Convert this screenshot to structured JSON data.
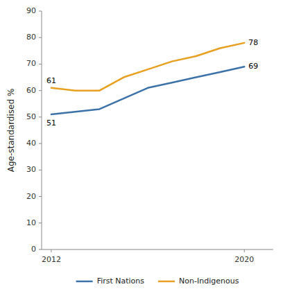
{
  "chart_data": {
    "type": "line",
    "x": [
      2012,
      2013,
      2014,
      2015,
      2016,
      2017,
      2018,
      2019,
      2020
    ],
    "series": [
      {
        "name": "First Nations",
        "color": "#3C72A8",
        "values": [
          51,
          52,
          53,
          57,
          61,
          63,
          65,
          67,
          69
        ]
      },
      {
        "name": "Non-Indigenous",
        "color": "#E8A020",
        "values": [
          61,
          60,
          60,
          65,
          68,
          71,
          73,
          76,
          78
        ]
      }
    ],
    "y_label": "Age-standardised %",
    "xlim": [
      2011.6,
      2021.2
    ],
    "xticks": [
      2012,
      2020
    ],
    "ylim": [
      0,
      90
    ],
    "yticks": [
      0,
      10,
      20,
      30,
      40,
      50,
      60,
      70,
      80,
      90
    ],
    "annotations": [
      {
        "text": "51",
        "x": 2012,
        "y": 51
      },
      {
        "text": "61",
        "x": 2012,
        "y": 61
      },
      {
        "text": "69",
        "x": 2020,
        "y": 69
      },
      {
        "text": "78",
        "x": 2020,
        "y": 78
      }
    ],
    "legend": "bottom",
    "grid": false,
    "background_color": "#ffffff"
  }
}
